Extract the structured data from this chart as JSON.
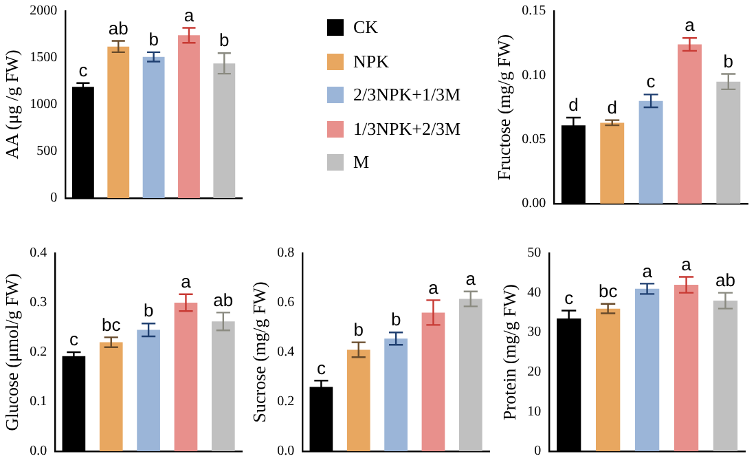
{
  "chart_data": [
    {
      "type": "bar",
      "ylabel": "AA (μg /g FW)",
      "categories": [
        null
      ],
      "legend": "right",
      "tick_labels": "y",
      "ylim": [
        0,
        2000
      ],
      "yticks": [
        0,
        500,
        1000,
        1500,
        2000
      ],
      "series": [
        {
          "name": "CK",
          "color": "#000000",
          "values": [
            1190
          ],
          "errors": [
            40
          ],
          "value_labels": [
            "c"
          ]
        },
        {
          "name": "NPK",
          "color": "#e8a760",
          "values": [
            1620
          ],
          "errors": [
            60
          ],
          "value_labels": [
            "ab"
          ]
        },
        {
          "name": "2/3NPK+1/3M",
          "color": "#9bb5d8",
          "values": [
            1510
          ],
          "errors": [
            50
          ],
          "value_labels": [
            "b"
          ]
        },
        {
          "name": "1/3NPK+2/3M",
          "color": "#e8908c",
          "values": [
            1740
          ],
          "errors": [
            80
          ],
          "value_labels": [
            "a"
          ]
        },
        {
          "name": "M",
          "color": "#c0c0c0",
          "values": [
            1440
          ],
          "errors": [
            110
          ],
          "value_labels": [
            "b"
          ]
        }
      ]
    },
    {
      "type": "bar",
      "ylabel": "Fructose (mg/g FW)",
      "categories": [
        null
      ],
      "tick_labels": "y",
      "ylim": [
        0,
        0.15
      ],
      "yticks": [
        {
          "value": 0,
          "label": "0.00"
        },
        {
          "value": 0.05,
          "label": "0.05"
        },
        {
          "value": 0.1,
          "label": "0.10"
        },
        {
          "value": 0.15,
          "label": "0.15"
        }
      ],
      "series": [
        {
          "color": "#000000",
          "values": [
            0.061
          ],
          "errors": [
            0.006
          ],
          "value_labels": [
            "d"
          ]
        },
        {
          "color": "#e8a760",
          "values": [
            0.063
          ],
          "errors": [
            0.002
          ],
          "value_labels": [
            "d"
          ]
        },
        {
          "color": "#9bb5d8",
          "values": [
            0.08
          ],
          "errors": [
            0.005
          ],
          "value_labels": [
            "c"
          ]
        },
        {
          "color": "#e8908c",
          "values": [
            0.124
          ],
          "errors": [
            0.005
          ],
          "value_labels": [
            "a"
          ]
        },
        {
          "color": "#c0c0c0",
          "values": [
            0.095
          ],
          "errors": [
            0.006
          ],
          "value_labels": [
            "b"
          ]
        }
      ]
    },
    {
      "type": "bar",
      "ylabel": "Glucose (μmol/g FW)",
      "categories": [
        null
      ],
      "tick_labels": "y",
      "ylim": [
        0,
        0.4
      ],
      "yticks": [
        {
          "value": 0,
          "label": "0.0"
        },
        0.1,
        0.2,
        0.3,
        0.4
      ],
      "series": [
        {
          "color": "#000000",
          "values": [
            0.192
          ],
          "errors": [
            0.008
          ],
          "value_labels": [
            "c"
          ]
        },
        {
          "color": "#e8a760",
          "values": [
            0.22
          ],
          "errors": [
            0.01
          ],
          "value_labels": [
            "bc"
          ]
        },
        {
          "color": "#9bb5d8",
          "values": [
            0.245
          ],
          "errors": [
            0.013
          ],
          "value_labels": [
            "b"
          ]
        },
        {
          "color": "#e8908c",
          "values": [
            0.3
          ],
          "errors": [
            0.017
          ],
          "value_labels": [
            "a"
          ]
        },
        {
          "color": "#c0c0c0",
          "values": [
            0.262
          ],
          "errors": [
            0.018
          ],
          "value_labels": [
            "ab"
          ]
        }
      ]
    },
    {
      "type": "bar",
      "ylabel": "Sucrose (mg/g FW)",
      "categories": [
        null
      ],
      "tick_labels": "y",
      "ylim": [
        0,
        0.8
      ],
      "yticks": [
        {
          "value": 0,
          "label": "0.0"
        },
        0.2,
        0.4,
        0.6,
        0.8
      ],
      "series": [
        {
          "color": "#000000",
          "values": [
            0.26
          ],
          "errors": [
            0.025
          ],
          "value_labels": [
            "c"
          ]
        },
        {
          "color": "#e8a760",
          "values": [
            0.41
          ],
          "errors": [
            0.03
          ],
          "value_labels": [
            "b"
          ]
        },
        {
          "color": "#9bb5d8",
          "values": [
            0.455
          ],
          "errors": [
            0.025
          ],
          "value_labels": [
            "b"
          ]
        },
        {
          "color": "#e8908c",
          "values": [
            0.56
          ],
          "errors": [
            0.05
          ],
          "value_labels": [
            "a"
          ]
        },
        {
          "color": "#c0c0c0",
          "values": [
            0.615
          ],
          "errors": [
            0.03
          ],
          "value_labels": [
            "a"
          ]
        }
      ]
    },
    {
      "type": "bar",
      "ylabel": "Protein (mg/g FW)",
      "categories": [
        null
      ],
      "tick_labels": "y",
      "ylim": [
        0,
        50
      ],
      "yticks": [
        0,
        10,
        20,
        30,
        40,
        50
      ],
      "series": [
        {
          "color": "#000000",
          "values": [
            33.5
          ],
          "errors": [
            2
          ],
          "value_labels": [
            "c"
          ]
        },
        {
          "color": "#e8a760",
          "values": [
            36
          ],
          "errors": [
            1.2
          ],
          "value_labels": [
            "bc"
          ]
        },
        {
          "color": "#9bb5d8",
          "values": [
            41
          ],
          "errors": [
            1.3
          ],
          "value_labels": [
            "a"
          ]
        },
        {
          "color": "#e8908c",
          "values": [
            42
          ],
          "errors": [
            2
          ],
          "value_labels": [
            "a"
          ]
        },
        {
          "color": "#c0c0c0",
          "values": [
            38
          ],
          "errors": [
            2
          ],
          "value_labels": [
            "ab"
          ]
        }
      ]
    }
  ]
}
